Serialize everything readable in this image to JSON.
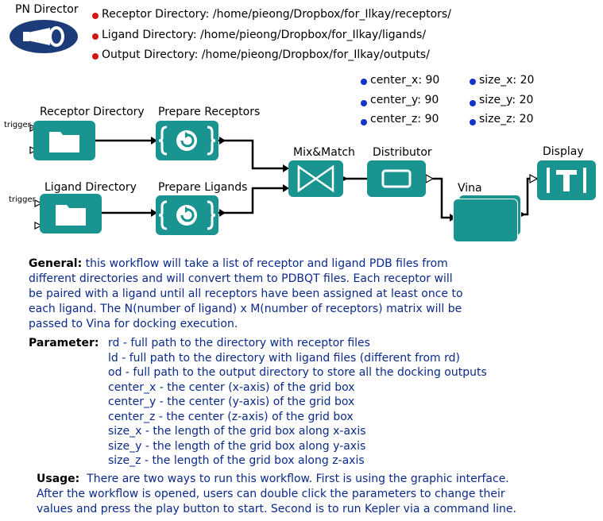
{
  "director": {
    "label": "PN Director"
  },
  "directories": [
    {
      "label": "Receptor Directory:",
      "value": "/home/pieong/Dropbox/for_Ilkay/receptors/"
    },
    {
      "label": "Ligand Directory:",
      "value": "/home/pieong/Dropbox/for_Ilkay/ligands/"
    },
    {
      "label": "Output Directory:",
      "value": "/home/pieong/Dropbox/for_Ilkay/outputs/"
    }
  ],
  "grid_params": [
    {
      "label": "center_x:",
      "value": "90"
    },
    {
      "label": "center_y:",
      "value": "90"
    },
    {
      "label": "center_z:",
      "value": "90"
    },
    {
      "label": "size_x:",
      "value": "20"
    },
    {
      "label": "size_y:",
      "value": "20"
    },
    {
      "label": "size_z:",
      "value": "20"
    }
  ],
  "actors": {
    "receptor_dir": "Receptor Directory",
    "prepare_receptors": "Prepare Receptors",
    "ligand_dir": "Ligand Directory",
    "prepare_ligands": "Prepare Ligands",
    "mixmatch": "Mix&Match",
    "distributor": "Distributor",
    "vina": "Vina",
    "display": "Display",
    "trigger1": "trigger",
    "trigger2": "trigger"
  },
  "general": {
    "heading": "General:",
    "lines": [
      "this workflow will take a list of receptor and ligand PDB files from",
      "different  directories and will convert them to PDBQT files. Each receptor will",
      "be paired with a ligand until all receptors have been assigned at least once to",
      "each ligand. The N(number of ligand) x M(number of receptors) matrix will be",
      "passed to Vina for docking execution."
    ]
  },
  "parameter": {
    "heading": "Parameter:",
    "lines": [
      "rd - full path to the directory with receptor files",
      "ld - full path to the directory with ligand files (different from rd)",
      "od - full path to the output directory to store  all the docking outputs",
      "center_x - the center (x-axis) of the grid box",
      "center_y - the center (y-axis) of the grid box",
      "center_z - the center (z-axis) of the grid box",
      "size_x - the length of the grid box along x-axis",
      "size_y - the length of the grid box along y-axis",
      "size_z - the length of the grid box along z-axis"
    ]
  },
  "usage": {
    "heading": "Usage:",
    "lines": [
      "There are two ways to run this workflow. First is using the graphic interface.",
      "After the workflow is opened, users can double click the parameters to change their",
      "values and press the play button to start. Second is to run Kepler via a command line."
    ]
  },
  "colors": {
    "actor": "#1a9490",
    "doc_text": "#0a2a8a",
    "director": "#1b3c78",
    "red_dot": "#d01818",
    "blue_dot": "#1034c8"
  }
}
